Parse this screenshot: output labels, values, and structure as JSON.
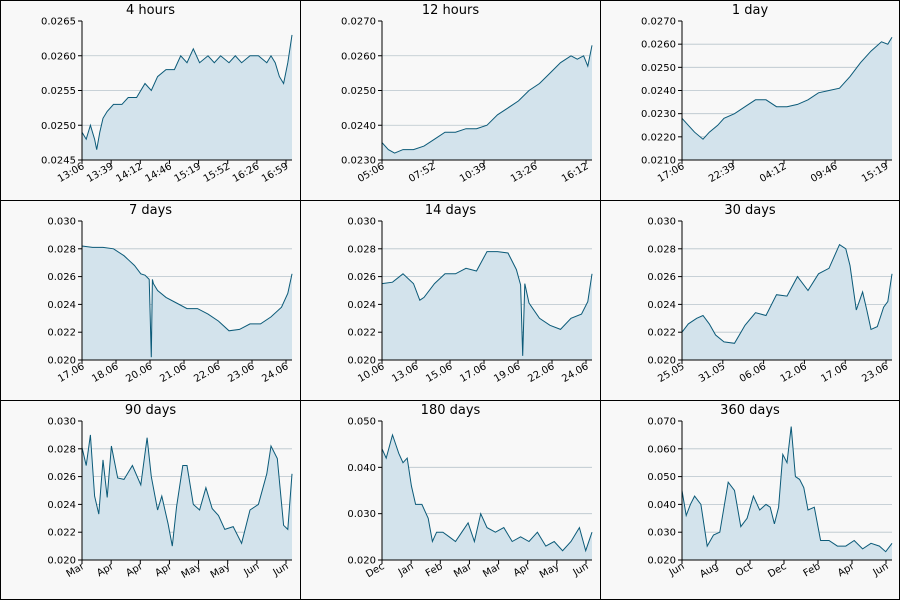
{
  "colors": {
    "line": "#0b5a78",
    "fill": "#d3e3ec",
    "grid": "#b8c4cc",
    "panel_bg": "#f8f8f8"
  },
  "chart_data": [
    {
      "type": "area",
      "title": "4 hours",
      "ylim": [
        0.0245,
        0.0265
      ],
      "yticks": [
        "0.0245",
        "0.0250",
        "0.0255",
        "0.0260",
        "0.0265"
      ],
      "xticks": [
        "13:06",
        "13:39",
        "14:12",
        "14:46",
        "15:19",
        "15:52",
        "16:26",
        "16:59"
      ],
      "x": [
        0,
        0.02,
        0.04,
        0.06,
        0.07,
        0.085,
        0.1,
        0.12,
        0.15,
        0.19,
        0.22,
        0.26,
        0.3,
        0.33,
        0.36,
        0.4,
        0.44,
        0.47,
        0.5,
        0.53,
        0.56,
        0.6,
        0.63,
        0.66,
        0.7,
        0.73,
        0.76,
        0.8,
        0.84,
        0.88,
        0.9,
        0.92,
        0.94,
        0.96,
        0.98,
        1.0
      ],
      "y": [
        0.0249,
        0.0248,
        0.025,
        0.0248,
        0.02465,
        0.0249,
        0.0251,
        0.0252,
        0.0253,
        0.0253,
        0.0254,
        0.0254,
        0.0256,
        0.0255,
        0.0257,
        0.0258,
        0.0258,
        0.026,
        0.0259,
        0.0261,
        0.0259,
        0.026,
        0.0259,
        0.026,
        0.0259,
        0.026,
        0.0259,
        0.026,
        0.026,
        0.0259,
        0.026,
        0.0259,
        0.0257,
        0.0256,
        0.0259,
        0.0263
      ]
    },
    {
      "type": "area",
      "title": "12 hours",
      "ylim": [
        0.023,
        0.027
      ],
      "yticks": [
        "0.0230",
        "0.0240",
        "0.0250",
        "0.0260",
        "0.0270"
      ],
      "xticks": [
        "05:06",
        "07:52",
        "10:39",
        "13:26",
        "16:12"
      ],
      "x": [
        0,
        0.03,
        0.06,
        0.1,
        0.15,
        0.2,
        0.25,
        0.3,
        0.35,
        0.4,
        0.45,
        0.5,
        0.55,
        0.6,
        0.65,
        0.7,
        0.75,
        0.8,
        0.85,
        0.9,
        0.93,
        0.96,
        0.98,
        1.0
      ],
      "y": [
        0.0235,
        0.0233,
        0.0232,
        0.0233,
        0.0233,
        0.0234,
        0.0236,
        0.0238,
        0.0238,
        0.0239,
        0.0239,
        0.024,
        0.0243,
        0.0245,
        0.0247,
        0.025,
        0.0252,
        0.0255,
        0.0258,
        0.026,
        0.0259,
        0.026,
        0.0257,
        0.0263
      ]
    },
    {
      "type": "area",
      "title": "1 day",
      "ylim": [
        0.021,
        0.027
      ],
      "yticks": [
        "0.0210",
        "0.0220",
        "0.0230",
        "0.0240",
        "0.0250",
        "0.0260",
        "0.0270"
      ],
      "xticks": [
        "17:06",
        "22:39",
        "04:12",
        "09:46",
        "15:19"
      ],
      "x": [
        0,
        0.03,
        0.06,
        0.1,
        0.13,
        0.17,
        0.2,
        0.25,
        0.3,
        0.35,
        0.4,
        0.45,
        0.5,
        0.55,
        0.6,
        0.65,
        0.7,
        0.75,
        0.8,
        0.85,
        0.9,
        0.95,
        0.98,
        1.0
      ],
      "y": [
        0.0228,
        0.0225,
        0.0222,
        0.0219,
        0.0222,
        0.0225,
        0.0228,
        0.023,
        0.0233,
        0.0236,
        0.0236,
        0.0233,
        0.0233,
        0.0234,
        0.0236,
        0.0239,
        0.024,
        0.0241,
        0.0246,
        0.0252,
        0.0257,
        0.0261,
        0.026,
        0.0263
      ]
    },
    {
      "type": "area",
      "title": "7 days",
      "ylim": [
        0.02,
        0.03
      ],
      "yticks": [
        "0.020",
        "0.022",
        "0.024",
        "0.026",
        "0.028",
        "0.030"
      ],
      "xticks": [
        "17.06",
        "18.06",
        "20.06",
        "21.06",
        "22.06",
        "23.06",
        "24.06"
      ],
      "x": [
        0,
        0.05,
        0.1,
        0.15,
        0.2,
        0.25,
        0.28,
        0.3,
        0.32,
        0.33,
        0.335,
        0.34,
        0.36,
        0.4,
        0.45,
        0.5,
        0.55,
        0.6,
        0.65,
        0.7,
        0.75,
        0.8,
        0.85,
        0.9,
        0.95,
        0.98,
        1.0
      ],
      "y": [
        0.0282,
        0.0281,
        0.0281,
        0.028,
        0.0275,
        0.0268,
        0.0262,
        0.0261,
        0.0258,
        0.0202,
        0.0258,
        0.0255,
        0.025,
        0.0245,
        0.0241,
        0.0237,
        0.0237,
        0.0233,
        0.0228,
        0.0221,
        0.0222,
        0.0226,
        0.0226,
        0.0231,
        0.0238,
        0.0248,
        0.0262
      ]
    },
    {
      "type": "area",
      "title": "14 days",
      "ylim": [
        0.02,
        0.03
      ],
      "yticks": [
        "0.020",
        "0.022",
        "0.024",
        "0.026",
        "0.028",
        "0.030"
      ],
      "xticks": [
        "10.06",
        "13.06",
        "15.06",
        "17.06",
        "19.06",
        "22.06",
        "24.06"
      ],
      "x": [
        0,
        0.05,
        0.1,
        0.15,
        0.18,
        0.2,
        0.25,
        0.3,
        0.35,
        0.4,
        0.45,
        0.5,
        0.55,
        0.6,
        0.64,
        0.66,
        0.67,
        0.68,
        0.7,
        0.75,
        0.8,
        0.85,
        0.9,
        0.95,
        0.98,
        1.0
      ],
      "y": [
        0.0255,
        0.0256,
        0.0262,
        0.0255,
        0.0243,
        0.0245,
        0.0255,
        0.0262,
        0.0262,
        0.0266,
        0.0264,
        0.0278,
        0.0278,
        0.0277,
        0.0265,
        0.0254,
        0.0203,
        0.0255,
        0.0241,
        0.023,
        0.0225,
        0.0222,
        0.023,
        0.0233,
        0.0242,
        0.0262
      ]
    },
    {
      "type": "area",
      "title": "30 days",
      "ylim": [
        0.02,
        0.03
      ],
      "yticks": [
        "0.020",
        "0.022",
        "0.024",
        "0.026",
        "0.028",
        "0.030"
      ],
      "xticks": [
        "25.05",
        "31.05",
        "06.06",
        "12.06",
        "17.06",
        "23.06"
      ],
      "x": [
        0,
        0.03,
        0.07,
        0.1,
        0.13,
        0.16,
        0.2,
        0.25,
        0.3,
        0.35,
        0.4,
        0.45,
        0.5,
        0.55,
        0.6,
        0.65,
        0.7,
        0.75,
        0.78,
        0.8,
        0.83,
        0.86,
        0.88,
        0.9,
        0.93,
        0.96,
        0.98,
        1.0
      ],
      "y": [
        0.022,
        0.0226,
        0.023,
        0.0232,
        0.0226,
        0.0218,
        0.0213,
        0.0212,
        0.0225,
        0.0234,
        0.0232,
        0.0247,
        0.0246,
        0.026,
        0.025,
        0.0262,
        0.0266,
        0.0283,
        0.028,
        0.0268,
        0.0236,
        0.0249,
        0.0236,
        0.0222,
        0.0224,
        0.0238,
        0.0242,
        0.0262
      ]
    },
    {
      "type": "area",
      "title": "90 days",
      "ylim": [
        0.02,
        0.03
      ],
      "yticks": [
        "0.020",
        "0.022",
        "0.024",
        "0.026",
        "0.028",
        "0.030"
      ],
      "xticks": [
        "Mar",
        "Apr",
        "Apr",
        "Apr",
        "May",
        "May",
        "Jun",
        "Jun"
      ],
      "x": [
        0,
        0.02,
        0.04,
        0.06,
        0.08,
        0.1,
        0.12,
        0.14,
        0.17,
        0.2,
        0.24,
        0.28,
        0.31,
        0.33,
        0.36,
        0.38,
        0.41,
        0.43,
        0.45,
        0.48,
        0.5,
        0.53,
        0.56,
        0.59,
        0.62,
        0.65,
        0.68,
        0.72,
        0.76,
        0.8,
        0.84,
        0.88,
        0.9,
        0.93,
        0.96,
        0.98,
        1.0
      ],
      "y": [
        0.0281,
        0.0268,
        0.029,
        0.0246,
        0.0233,
        0.0272,
        0.0245,
        0.0282,
        0.0259,
        0.0258,
        0.0268,
        0.0254,
        0.0288,
        0.026,
        0.0236,
        0.0246,
        0.0226,
        0.021,
        0.0238,
        0.0268,
        0.0268,
        0.024,
        0.0236,
        0.0252,
        0.0237,
        0.0232,
        0.0222,
        0.0224,
        0.0212,
        0.0236,
        0.024,
        0.0262,
        0.0282,
        0.0273,
        0.0225,
        0.0222,
        0.0262
      ]
    },
    {
      "type": "area",
      "title": "180 days",
      "ylim": [
        0.02,
        0.05
      ],
      "yticks": [
        "0.020",
        "0.030",
        "0.040",
        "0.050"
      ],
      "xticks": [
        "Dec",
        "Jan",
        "Feb",
        "Mar",
        "Mar",
        "Apr",
        "May",
        "Jun"
      ],
      "x": [
        0,
        0.02,
        0.05,
        0.08,
        0.1,
        0.12,
        0.14,
        0.16,
        0.19,
        0.22,
        0.24,
        0.26,
        0.29,
        0.32,
        0.35,
        0.38,
        0.41,
        0.44,
        0.47,
        0.5,
        0.54,
        0.58,
        0.62,
        0.66,
        0.7,
        0.74,
        0.78,
        0.82,
        0.86,
        0.9,
        0.94,
        0.97,
        1.0
      ],
      "y": [
        0.044,
        0.042,
        0.047,
        0.043,
        0.041,
        0.042,
        0.036,
        0.032,
        0.032,
        0.029,
        0.024,
        0.026,
        0.026,
        0.025,
        0.024,
        0.026,
        0.028,
        0.024,
        0.03,
        0.027,
        0.026,
        0.027,
        0.024,
        0.025,
        0.024,
        0.026,
        0.023,
        0.024,
        0.022,
        0.024,
        0.027,
        0.022,
        0.026
      ]
    },
    {
      "type": "area",
      "title": "360 days",
      "ylim": [
        0.02,
        0.07
      ],
      "yticks": [
        "0.020",
        "0.030",
        "0.040",
        "0.050",
        "0.060",
        "0.070"
      ],
      "xticks": [
        "Jun",
        "Aug",
        "Oct",
        "Dec",
        "Feb",
        "Apr",
        "Jun"
      ],
      "x": [
        0,
        0.02,
        0.04,
        0.06,
        0.09,
        0.12,
        0.15,
        0.18,
        0.2,
        0.22,
        0.25,
        0.28,
        0.31,
        0.34,
        0.37,
        0.4,
        0.42,
        0.44,
        0.46,
        0.48,
        0.5,
        0.52,
        0.54,
        0.56,
        0.58,
        0.6,
        0.63,
        0.66,
        0.7,
        0.74,
        0.78,
        0.82,
        0.86,
        0.9,
        0.94,
        0.97,
        1.0
      ],
      "y": [
        0.045,
        0.036,
        0.04,
        0.043,
        0.04,
        0.025,
        0.029,
        0.03,
        0.039,
        0.048,
        0.045,
        0.032,
        0.035,
        0.043,
        0.038,
        0.04,
        0.039,
        0.033,
        0.039,
        0.058,
        0.055,
        0.068,
        0.05,
        0.049,
        0.046,
        0.038,
        0.039,
        0.027,
        0.027,
        0.025,
        0.025,
        0.027,
        0.024,
        0.026,
        0.025,
        0.023,
        0.026
      ]
    }
  ]
}
